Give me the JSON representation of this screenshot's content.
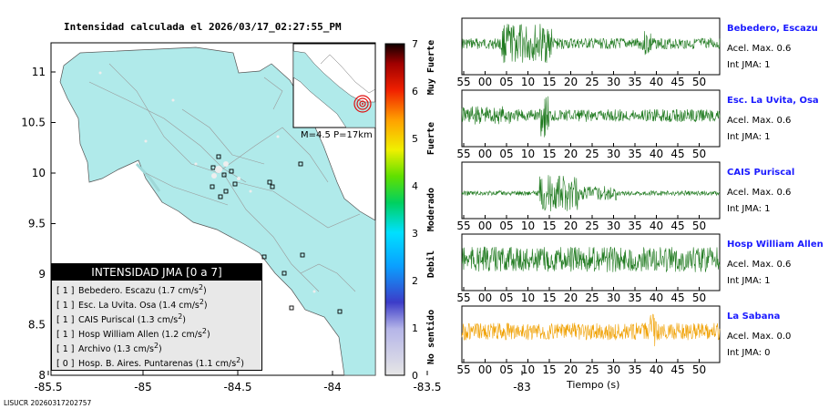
{
  "title": "Intensidad calculada el 2026/03/17_02:27:55_PM",
  "map": {
    "yticks": [
      "11",
      "10.5",
      "10",
      "9.5",
      "9",
      "8.5",
      "8"
    ],
    "xticks": [
      "-85.5",
      "-85",
      "-84.5",
      "-84",
      "-83.5",
      "-83"
    ],
    "land_color": "#b0eaea"
  },
  "inset_label": "M=4.5 P=17km",
  "colorbar": {
    "ticks": [
      "7",
      "6",
      "5",
      "4",
      "3",
      "2",
      "1",
      "0"
    ],
    "categories": [
      "Muy Fuerte",
      "Fuerte",
      "Moderado",
      "Debil",
      "No sentido"
    ]
  },
  "legend": {
    "title": "INTENSIDAD JMA [0 a 7]",
    "rows": [
      {
        "int": "[ 1 ]",
        "text": "Bebedero. Escazu (1.7 cm/s",
        "sup": "2",
        "close": ")"
      },
      {
        "int": "[ 1 ]",
        "text": "Esc. La Uvita. Osa (1.4 cm/s",
        "sup": "2",
        "close": ")"
      },
      {
        "int": "[ 1 ]",
        "text": "CAIS Puriscal (1.3 cm/s",
        "sup": "2",
        "close": ")"
      },
      {
        "int": "[ 1 ]",
        "text": "Hosp William Allen (1.2 cm/s",
        "sup": "2",
        "close": ")"
      },
      {
        "int": "[ 1 ]",
        "text": "Archivo (1.3 cm/s",
        "sup": "2",
        "close": ")"
      },
      {
        "int": "[ 0 ]",
        "text": "Hosp. B. Aires. Puntarenas (1.1 cm/s",
        "sup": "2",
        "close": ")"
      }
    ]
  },
  "stations": [
    {
      "name": "Bebedero, Escazu",
      "acc": "Acel. Max. 0.6",
      "jma": "Int JMA: 1",
      "color": "#1f7a1f",
      "ticks": [
        "55",
        "00",
        "05",
        "10",
        "15",
        "20",
        "25",
        "30",
        "35",
        "40",
        "45",
        "50"
      ]
    },
    {
      "name": "Esc. La Uvita, Osa",
      "acc": "Acel. Max. 0.6",
      "jma": "Int JMA: 1",
      "color": "#1f7a1f",
      "ticks": [
        "55",
        "00",
        "05",
        "10",
        "15",
        "20",
        "25",
        "30",
        "35",
        "40",
        "45",
        "50"
      ]
    },
    {
      "name": "CAIS Puriscal",
      "acc": "Acel. Max. 0.6",
      "jma": "Int JMA: 1",
      "color": "#1f7a1f",
      "ticks": [
        "55",
        "00",
        "05",
        "10",
        "15",
        "20",
        "25",
        "30",
        "35",
        "40",
        "45",
        "50"
      ]
    },
    {
      "name": "Hosp William Allen",
      "acc": "Acel. Max. 0.6",
      "jma": "Int JMA: 1",
      "color": "#1f7a1f",
      "ticks": [
        "55",
        "00",
        "05",
        "10",
        "15",
        "20",
        "25",
        "30",
        "35",
        "40",
        "45",
        "50"
      ]
    },
    {
      "name": "La Sabana",
      "acc": "Acel. Max. 0.0",
      "jma": "Int JMA: 0",
      "color": "#f0a000",
      "ticks": [
        "55",
        "00",
        "05",
        "10",
        "15",
        "20",
        "25",
        "30",
        "35",
        "40",
        "45",
        "50"
      ]
    }
  ],
  "xlabel": "Tiempo (s)",
  "footer": "LISUCR 20260317202757"
}
